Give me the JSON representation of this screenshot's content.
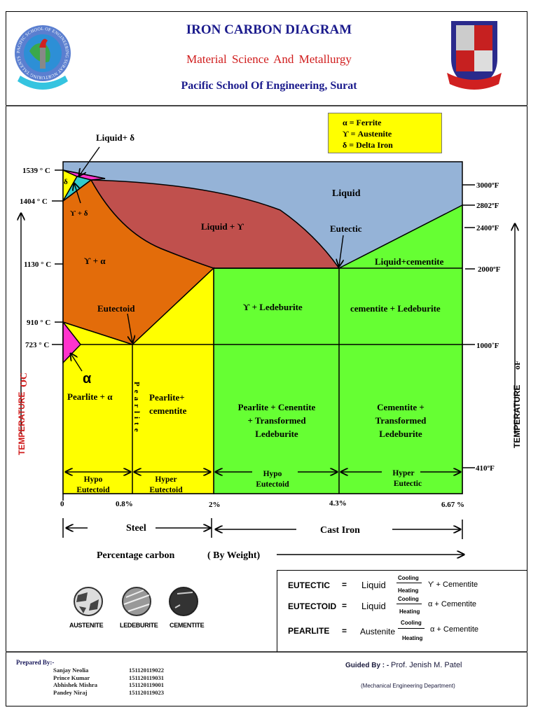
{
  "header": {
    "title": "IRON CARBON DIAGRAM",
    "subtitle": "Material Science And Metallurgy",
    "institution": "Pacific School Of Engineering, Surat",
    "left_logo_text": "PACIFIC SCHOOL OF ENGINEERING SURAT NURTURING TALENTS",
    "title_color": "#1a1a8c",
    "subtitle_color": "#d01c1c"
  },
  "legend": [
    "α  =  Ferrite",
    "ϒ =  Austenite",
    "δ  =  Delta Iron"
  ],
  "diagram": {
    "celsius_ticks": [
      "1539 ° C",
      "1404 ° C",
      "1130 ° C",
      "910 ° C",
      "723 ° C"
    ],
    "fahrenheit_ticks": [
      "3000ºF",
      "2802ºF",
      "2400ºF",
      "2000ºF",
      "1000˚F",
      "410ºF"
    ],
    "carbon_ticks": [
      "0",
      "0.8%",
      "2%",
      "4.3%",
      "6.67 %"
    ],
    "y_axis_left": "TEMPERATURE",
    "y_axis_left_unit": "OC",
    "y_axis_right": "TEMPERATURE",
    "y_axis_right_unit": "oF",
    "x_axis_label": "Percentage  carbon",
    "x_axis_note": "( By Weight)",
    "steel_label": "Steel",
    "cast_iron_label": "Cast Iron",
    "regions": {
      "liquid_delta": "Liquid+ δ",
      "delta": "δ",
      "gamma_delta": "ϒ + δ",
      "liquid": "Liquid",
      "liquid_gamma": "Liquid  +  ϒ",
      "eutectic": "Eutectic",
      "gamma_alpha": "ϒ  +  α",
      "liquid_cementite": "Liquid+cementite",
      "eutectoid": "Eutectoid",
      "gamma_ledeburite": "ϒ  + Ledeburite",
      "cementite_ledeburite": "cementite + Ledeburite",
      "alpha": "α",
      "pearlite_alpha": "Pearlite + α",
      "pearlite_vertical": "Pearlite",
      "pearlite_cementite_1": "Pearlite+",
      "pearlite_cementite_2": "cementite",
      "pct_1": "Pearlite  +  Cenentite",
      "pct_2": "+ Transformed",
      "pct_3": "Ledeburite",
      "ctl_1": "Cementite  +",
      "ctl_2": "Transformed",
      "ctl_3": "Ledeburite",
      "hypo_eutectoid_1": [
        "Hypo",
        "Eutectoid"
      ],
      "hyper_eutectoid": [
        "Hyper",
        "Eutectoid"
      ],
      "hypo_eutectoid_2": [
        "Hypo",
        "Eutectoid"
      ],
      "hyper_eutectic": [
        "Hyper",
        "Eutectic"
      ]
    },
    "colors": {
      "liquid": "#95b3d7",
      "liquid_gamma": "#c0504d",
      "gamma_alpha": "#e36c0a",
      "yellow": "#ffff00",
      "green": "#66ff33",
      "pink": "#ff33cc",
      "cyan": "#33cccc"
    }
  },
  "microstructures": [
    "AUSTENITE",
    "LEDEBURITE",
    "CEMENTITE"
  ],
  "equations": [
    {
      "name": "EUTECTIC",
      "eq": "=",
      "left": "Liquid",
      "top": "Cooling",
      "bottom": "Heating",
      "right": "ϒ  +  Cementite"
    },
    {
      "name": "EUTECTOID",
      "eq": "=",
      "left": "Liquid",
      "top": "Cooling",
      "bottom": "Heating",
      "right": "α  + Cementite"
    },
    {
      "name": "PEARLITE",
      "eq": "=",
      "left": "Austenite",
      "top": "Cooling",
      "bottom": "Heating",
      "right": "α +  Cementite"
    }
  ],
  "footer": {
    "prepared_by": "Prepared By:-",
    "students": [
      {
        "name": "Sanjay Neolia",
        "id": "151120119022"
      },
      {
        "name": "Prince Kumar",
        "id": "151120119031"
      },
      {
        "name": "Abhishek Mishra",
        "id": "151120119001"
      },
      {
        "name": "Pandey Niraj",
        "id": "151120119023"
      }
    ],
    "guided_by_label": "Guided By : -",
    "guide": "Prof. Jenish M. Patel",
    "department": "(Mechanical Engineering Department)"
  }
}
